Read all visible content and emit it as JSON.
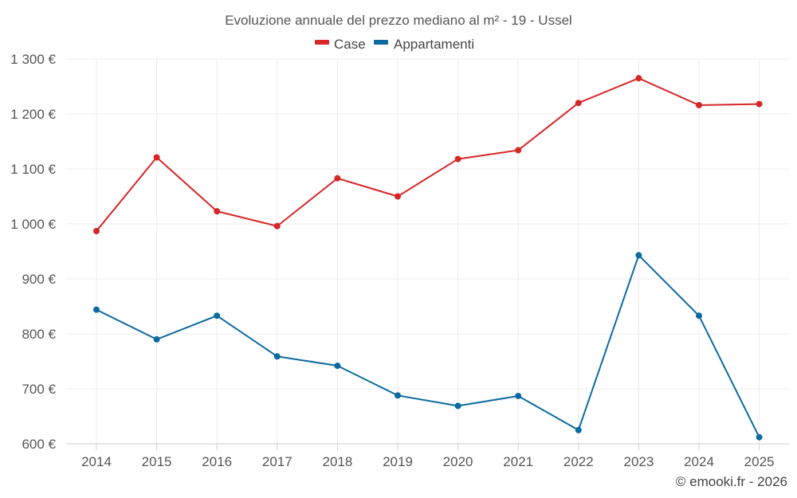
{
  "chart_data": {
    "type": "line",
    "title": "Evoluzione annuale del prezzo mediano al m² - 19 - Ussel",
    "xlabel": "",
    "ylabel": "",
    "categories": [
      "2014",
      "2015",
      "2016",
      "2017",
      "2018",
      "2019",
      "2020",
      "2021",
      "2022",
      "2023",
      "2024",
      "2025"
    ],
    "ylim": [
      600,
      1300
    ],
    "yticks": [
      600,
      700,
      800,
      900,
      1000,
      1100,
      1200,
      1300
    ],
    "ytick_labels": [
      "600 €",
      "700 €",
      "800 €",
      "900 €",
      "1 000 €",
      "1 100 €",
      "1 200 €",
      "1 300 €"
    ],
    "grid": true,
    "legend_position": "top-center",
    "series": [
      {
        "name": "Case",
        "color": "#d62728",
        "values": [
          987,
          1121,
          1023,
          996,
          1083,
          1050,
          1118,
          1134,
          1220,
          1265,
          1216,
          1218
        ]
      },
      {
        "name": "Appartamenti",
        "color": "#0d6aa0",
        "values": [
          844,
          790,
          833,
          759,
          742,
          688,
          669,
          687,
          625,
          943,
          833,
          612
        ]
      }
    ],
    "credit": "© emooki.fr - 2026"
  }
}
